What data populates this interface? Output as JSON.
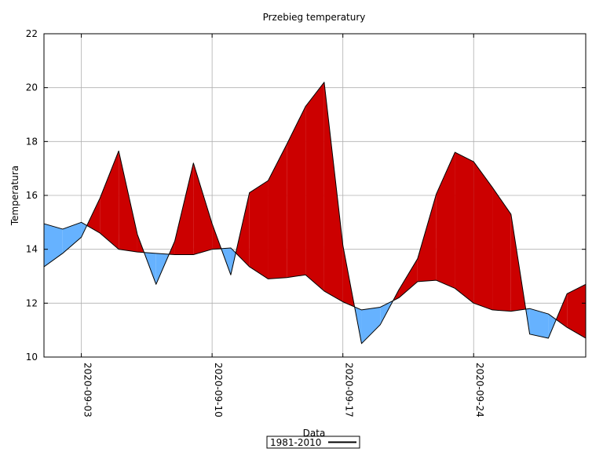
{
  "chart_data": {
    "type": "area",
    "title": "Przebieg temperatury",
    "xlabel": "Data",
    "ylabel": "Temperatura",
    "ylim": [
      10,
      22
    ],
    "y_ticks": [
      10,
      12,
      14,
      16,
      18,
      20,
      22
    ],
    "x_range": [
      "2020-09-01",
      "2020-09-30"
    ],
    "x_ticks": [
      "2020-09-03",
      "2020-09-10",
      "2020-09-17",
      "2020-09-24"
    ],
    "grid": true,
    "legend": {
      "position": "bottom-center",
      "label": "1981-2010"
    },
    "colors": {
      "above": "#cc0000",
      "below": "#66b2ff",
      "line": "#000000"
    },
    "x": [
      "2020-09-01",
      "2020-09-02",
      "2020-09-03",
      "2020-09-04",
      "2020-09-05",
      "2020-09-06",
      "2020-09-07",
      "2020-09-08",
      "2020-09-09",
      "2020-09-10",
      "2020-09-11",
      "2020-09-12",
      "2020-09-13",
      "2020-09-14",
      "2020-09-15",
      "2020-09-16",
      "2020-09-17",
      "2020-09-18",
      "2020-09-19",
      "2020-09-20",
      "2020-09-21",
      "2020-09-22",
      "2020-09-23",
      "2020-09-24",
      "2020-09-25",
      "2020-09-26",
      "2020-09-27",
      "2020-09-28",
      "2020-09-29",
      "2020-09-30"
    ],
    "series": [
      {
        "values": [
          13.35,
          13.85,
          14.45,
          15.9,
          17.65,
          14.55,
          12.7,
          14.3,
          17.2,
          14.95,
          13.05,
          16.1,
          16.55,
          17.9,
          19.3,
          20.2,
          14.15,
          10.5,
          11.2,
          12.5,
          13.65,
          16.05,
          17.6,
          17.25,
          16.3,
          15.3,
          10.85,
          10.7,
          12.35,
          12.7
        ]
      },
      {
        "name": "1981-2010",
        "values": [
          14.95,
          14.75,
          15.0,
          14.6,
          14.0,
          13.9,
          13.85,
          13.8,
          13.8,
          14.0,
          14.05,
          13.35,
          12.9,
          12.95,
          13.05,
          12.45,
          12.05,
          11.75,
          11.85,
          12.2,
          12.8,
          12.85,
          12.55,
          12.0,
          11.75,
          11.7,
          11.8,
          11.6,
          11.1,
          10.7
        ]
      }
    ]
  }
}
